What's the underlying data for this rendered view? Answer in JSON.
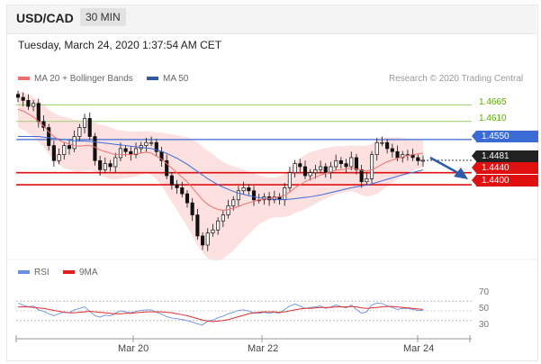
{
  "header": {
    "pair": "USD/CAD",
    "timeframe": "30 MIN"
  },
  "datetime": "Tuesday, March 24, 2020 1:37:54 AM CET",
  "legend": {
    "ma20": "MA 20 + Bollinger Bands",
    "ma50": "MA 50",
    "rsi": "RSI",
    "ma9": "9MA"
  },
  "credit": "Research © 2020 Trading Central",
  "colors": {
    "ma20": "#f07070",
    "ma50": "#3b6cd6",
    "bollinger": "#fcd6d6",
    "resistance": "#9bd06a",
    "pivot": "#3b6cd6",
    "support": "#e01010",
    "price": "#222222",
    "rsi": "#6b8fe0",
    "ma9": "#e03030"
  },
  "levels": [
    {
      "id": "r2",
      "label": "1.4665",
      "type": "resistance"
    },
    {
      "id": "r1",
      "label": "1.4610",
      "type": "resistance"
    },
    {
      "id": "pivot",
      "label": "1.4550",
      "type": "pivot"
    },
    {
      "id": "last",
      "label": "1.4481",
      "type": "price"
    },
    {
      "id": "s1",
      "label": "1.4440",
      "type": "support"
    },
    {
      "id": "s2",
      "label": "1.4400",
      "type": "support"
    }
  ],
  "rsi_levels": [
    "70",
    "50",
    "30"
  ],
  "x_labels": [
    "Mar 20",
    "Mar 22",
    "Mar 24"
  ],
  "chart_data": {
    "type": "candlestick",
    "price_range": [
      1.417,
      1.472
    ],
    "close": [
      1.469,
      1.468,
      1.466,
      1.467,
      1.461,
      1.459,
      1.453,
      1.448,
      1.45,
      1.453,
      1.452,
      1.456,
      1.459,
      1.462,
      1.456,
      1.448,
      1.445,
      1.447,
      1.446,
      1.449,
      1.452,
      1.451,
      1.45,
      1.452,
      1.453,
      1.454,
      1.454,
      1.451,
      1.448,
      1.443,
      1.44,
      1.439,
      1.437,
      1.434,
      1.43,
      1.423,
      1.42,
      1.424,
      1.425,
      1.428,
      1.43,
      1.433,
      1.435,
      1.438,
      1.439,
      1.438,
      1.435,
      1.435,
      1.436,
      1.435,
      1.436,
      1.435,
      1.439,
      1.444,
      1.447,
      1.446,
      1.443,
      1.444,
      1.445,
      1.446,
      1.444,
      1.446,
      1.448,
      1.447,
      1.446,
      1.449,
      1.445,
      1.441,
      1.442,
      1.45,
      1.454,
      1.454,
      1.452,
      1.451,
      1.449,
      1.45,
      1.45,
      1.449,
      1.448,
      1.4481
    ],
    "ma20": [
      1.465,
      1.4645,
      1.4635,
      1.4625,
      1.461,
      1.4595,
      1.4575,
      1.456,
      1.4548,
      1.454,
      1.4535,
      1.453,
      1.4528,
      1.453,
      1.453,
      1.4525,
      1.4515,
      1.451,
      1.4505,
      1.45,
      1.45,
      1.45,
      1.45,
      1.4502,
      1.4505,
      1.4508,
      1.4505,
      1.4495,
      1.4485,
      1.447,
      1.4455,
      1.444,
      1.4425,
      1.441,
      1.439,
      1.437,
      1.435,
      1.4335,
      1.4325,
      1.4318,
      1.4315,
      1.4318,
      1.4322,
      1.4328,
      1.4335,
      1.434,
      1.4345,
      1.435,
      1.4352,
      1.4355,
      1.4358,
      1.436,
      1.4365,
      1.4375,
      1.439,
      1.44,
      1.441,
      1.4418,
      1.4425,
      1.4432,
      1.4438,
      1.4443,
      1.4448,
      1.445,
      1.4452,
      1.4455,
      1.4452,
      1.4448,
      1.4445,
      1.445,
      1.4458,
      1.4468,
      1.4476,
      1.4482,
      1.4488,
      1.4492,
      1.4496,
      1.45,
      1.4502,
      1.4505
    ],
    "ma50": [
      1.456,
      1.456,
      1.456,
      1.456,
      1.456,
      1.4558,
      1.4556,
      1.4554,
      1.4552,
      1.455,
      1.4548,
      1.4546,
      1.4545,
      1.4545,
      1.4544,
      1.4542,
      1.454,
      1.4538,
      1.4536,
      1.4534,
      1.4532,
      1.453,
      1.4528,
      1.4526,
      1.4524,
      1.4522,
      1.452,
      1.4516,
      1.451,
      1.4504,
      1.4496,
      1.4488,
      1.4478,
      1.4468,
      1.4456,
      1.4444,
      1.4432,
      1.442,
      1.441,
      1.44,
      1.4392,
      1.4385,
      1.4378,
      1.4372,
      1.4368,
      1.4364,
      1.436,
      1.4357,
      1.4355,
      1.4353,
      1.4352,
      1.4351,
      1.4351,
      1.4352,
      1.4354,
      1.4356,
      1.4358,
      1.436,
      1.4363,
      1.4366,
      1.437,
      1.4374,
      1.4378,
      1.4382,
      1.4386,
      1.439,
      1.4393,
      1.4396,
      1.4399,
      1.4403,
      1.4408,
      1.4413,
      1.4418,
      1.4423,
      1.4428,
      1.4433,
      1.4437,
      1.4441,
      1.4445,
      1.4449
    ],
    "band_width": [
      0.006,
      0.0062,
      0.0064,
      0.0066,
      0.0068,
      0.007,
      0.0074,
      0.0078,
      0.0082,
      0.0085,
      0.0086,
      0.0086,
      0.0086,
      0.0084,
      0.0082,
      0.0082,
      0.0084,
      0.0086,
      0.0086,
      0.0084,
      0.008,
      0.0078,
      0.0076,
      0.0074,
      0.0072,
      0.007,
      0.0072,
      0.0078,
      0.0088,
      0.01,
      0.0112,
      0.0124,
      0.0136,
      0.0148,
      0.016,
      0.017,
      0.0175,
      0.0178,
      0.0176,
      0.017,
      0.016,
      0.015,
      0.014,
      0.0128,
      0.0116,
      0.0104,
      0.0092,
      0.0082,
      0.0074,
      0.0068,
      0.0066,
      0.0068,
      0.0072,
      0.0078,
      0.0084,
      0.0088,
      0.009,
      0.009,
      0.0088,
      0.0086,
      0.0084,
      0.0082,
      0.008,
      0.0078,
      0.0076,
      0.0076,
      0.0078,
      0.0082,
      0.0084,
      0.0086,
      0.0088,
      0.0086,
      0.0082,
      0.0076,
      0.007,
      0.0064,
      0.0058,
      0.0052,
      0.0048,
      0.0045
    ],
    "rsi": [
      66,
      62,
      58,
      60,
      52,
      49,
      44,
      40,
      44,
      48,
      46,
      52,
      55,
      58,
      49,
      40,
      37,
      41,
      40,
      45,
      50,
      48,
      46,
      49,
      51,
      52,
      52,
      47,
      43,
      38,
      35,
      34,
      32,
      30,
      27,
      23,
      21,
      29,
      31,
      36,
      39,
      44,
      47,
      51,
      52,
      50,
      45,
      45,
      47,
      45,
      47,
      45,
      53,
      60,
      64,
      60,
      55,
      57,
      58,
      60,
      55,
      58,
      62,
      59,
      56,
      62,
      53,
      45,
      48,
      62,
      66,
      65,
      60,
      57,
      53,
      55,
      55,
      53,
      51,
      51
    ],
    "ma9": [
      58,
      58,
      58,
      57,
      56,
      55,
      53,
      51,
      49,
      47,
      46,
      46,
      47,
      48,
      49,
      48,
      47,
      46,
      45,
      44,
      44,
      45,
      45,
      46,
      47,
      48,
      48,
      48,
      48,
      47,
      46,
      44,
      42,
      40,
      37,
      34,
      31,
      29,
      28,
      29,
      30,
      32,
      35,
      38,
      41,
      44,
      46,
      47,
      48,
      48,
      48,
      47,
      48,
      50,
      52,
      54,
      55,
      55,
      56,
      57,
      57,
      57,
      58,
      58,
      58,
      59,
      58,
      56,
      55,
      56,
      57,
      58,
      59,
      59,
      58,
      57,
      56,
      55,
      54,
      53
    ]
  }
}
